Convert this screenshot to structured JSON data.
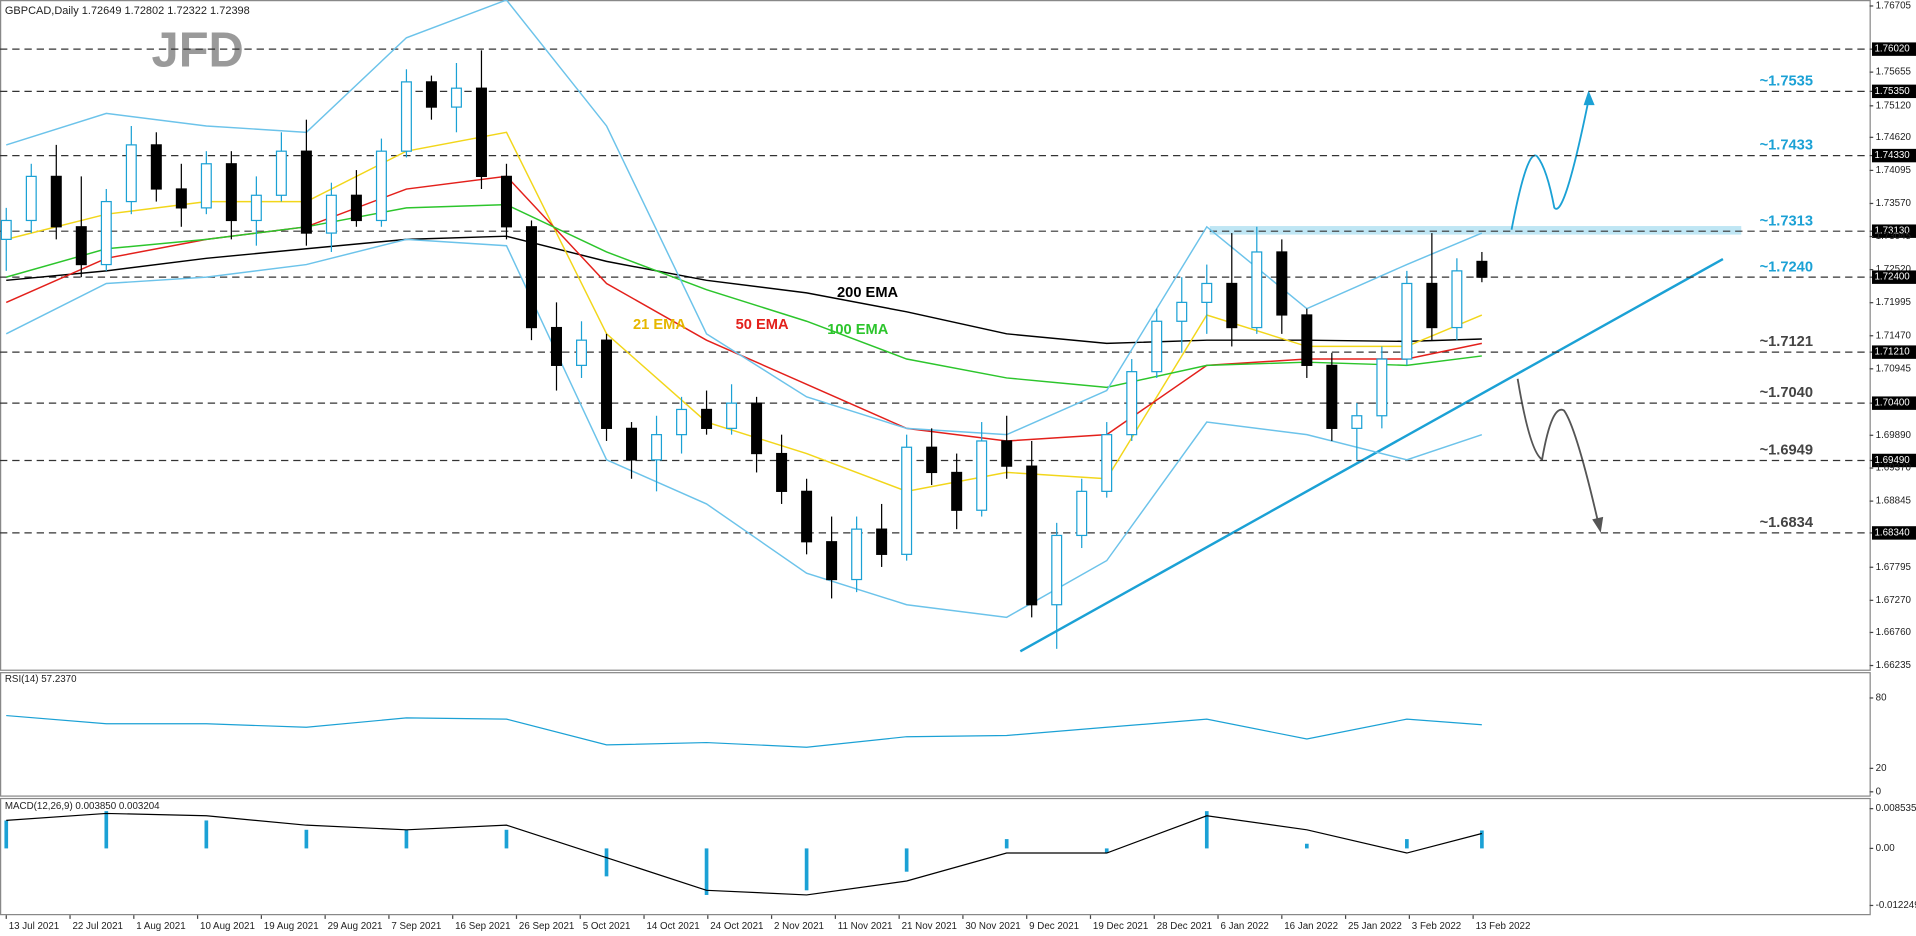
{
  "chart_data": [
    {
      "type": "candlestick",
      "title": "GBPCAD,Daily  1.72649 1.72802 1.72322 1.72398",
      "logo": "JFD",
      "up_color": "#1ba1d5",
      "down_color": "#000000",
      "open": [
        1.73,
        1.733,
        1.74,
        1.732,
        1.726,
        1.736,
        1.745,
        1.738,
        1.735,
        1.742,
        1.733,
        1.737,
        1.744,
        1.731,
        1.737,
        1.733,
        1.744,
        1.755,
        1.751,
        1.754,
        1.74,
        1.732,
        1.716,
        1.71,
        1.714,
        1.7,
        1.695,
        1.699,
        1.703,
        1.7,
        1.704,
        1.696,
        1.69,
        1.682,
        1.676,
        1.684,
        1.68,
        1.697,
        1.693,
        1.687,
        1.698,
        1.694,
        1.672,
        1.683,
        1.69,
        1.699,
        1.709,
        1.717,
        1.72,
        1.723,
        1.716,
        1.728,
        1.718,
        1.71,
        1.7,
        1.702,
        1.711,
        1.723,
        1.716,
        1.7265
      ],
      "high": [
        1.735,
        1.742,
        1.745,
        1.74,
        1.738,
        1.748,
        1.747,
        1.742,
        1.744,
        1.744,
        1.74,
        1.747,
        1.749,
        1.739,
        1.741,
        1.746,
        1.757,
        1.756,
        1.758,
        1.76,
        1.742,
        1.733,
        1.72,
        1.717,
        1.715,
        1.701,
        1.702,
        1.705,
        1.706,
        1.707,
        1.705,
        1.699,
        1.692,
        1.686,
        1.686,
        1.688,
        1.699,
        1.7,
        1.696,
        1.701,
        1.702,
        1.698,
        1.685,
        1.692,
        1.701,
        1.711,
        1.719,
        1.724,
        1.726,
        1.731,
        1.732,
        1.73,
        1.719,
        1.712,
        1.704,
        1.713,
        1.725,
        1.731,
        1.727,
        1.728
      ],
      "low": [
        1.725,
        1.731,
        1.73,
        1.724,
        1.725,
        1.734,
        1.736,
        1.732,
        1.734,
        1.73,
        1.729,
        1.736,
        1.729,
        1.728,
        1.732,
        1.732,
        1.743,
        1.749,
        1.747,
        1.738,
        1.73,
        1.714,
        1.706,
        1.708,
        1.698,
        1.692,
        1.69,
        1.696,
        1.699,
        1.699,
        1.693,
        1.688,
        1.68,
        1.673,
        1.674,
        1.678,
        1.679,
        1.691,
        1.684,
        1.686,
        1.692,
        1.67,
        1.665,
        1.681,
        1.689,
        1.698,
        1.708,
        1.712,
        1.715,
        1.713,
        1.715,
        1.715,
        1.708,
        1.698,
        1.695,
        1.7,
        1.71,
        1.714,
        1.714,
        1.7232
      ],
      "close": [
        1.733,
        1.74,
        1.732,
        1.726,
        1.736,
        1.745,
        1.738,
        1.735,
        1.742,
        1.733,
        1.737,
        1.744,
        1.731,
        1.737,
        1.733,
        1.744,
        1.755,
        1.751,
        1.754,
        1.74,
        1.732,
        1.716,
        1.71,
        1.714,
        1.7,
        1.695,
        1.699,
        1.703,
        1.7,
        1.704,
        1.696,
        1.69,
        1.682,
        1.676,
        1.684,
        1.68,
        1.697,
        1.693,
        1.687,
        1.698,
        1.694,
        1.672,
        1.683,
        1.69,
        1.699,
        1.709,
        1.717,
        1.72,
        1.723,
        1.716,
        1.728,
        1.718,
        1.71,
        1.7,
        1.702,
        1.711,
        1.723,
        1.716,
        1.725,
        1.724
      ],
      "series": [
        {
          "name": "200 EMA",
          "color": "#000000",
          "x": [
            0,
            4,
            8,
            12,
            16,
            20,
            24,
            28,
            32,
            36,
            40,
            44,
            48,
            52,
            56,
            59
          ],
          "values": [
            1.7235,
            1.725,
            1.727,
            1.7285,
            1.73,
            1.7305,
            1.7265,
            1.7235,
            1.7215,
            1.7185,
            1.715,
            1.7135,
            1.714,
            1.714,
            1.7138,
            1.7142
          ]
        },
        {
          "name": "21 EMA",
          "color": "#f2d61a",
          "x": [
            0,
            4,
            8,
            12,
            16,
            20,
            24,
            28,
            32,
            36,
            40,
            44,
            48,
            52,
            56,
            59
          ],
          "values": [
            1.73,
            1.734,
            1.736,
            1.736,
            1.744,
            1.747,
            1.715,
            1.701,
            1.696,
            1.69,
            1.693,
            1.692,
            1.718,
            1.713,
            1.713,
            1.718
          ]
        },
        {
          "name": "50 EMA",
          "color": "#e3201b",
          "x": [
            0,
            4,
            8,
            12,
            16,
            20,
            24,
            28,
            32,
            36,
            40,
            44,
            48,
            52,
            56,
            59
          ],
          "values": [
            1.72,
            1.727,
            1.73,
            1.732,
            1.738,
            1.74,
            1.723,
            1.714,
            1.707,
            1.7,
            1.698,
            1.699,
            1.71,
            1.711,
            1.711,
            1.7135
          ]
        },
        {
          "name": "100 EMA",
          "color": "#2cc52c",
          "x": [
            0,
            4,
            8,
            12,
            16,
            20,
            24,
            28,
            32,
            36,
            40,
            44,
            48,
            52,
            56,
            59
          ],
          "values": [
            1.724,
            1.7285,
            1.73,
            1.732,
            1.735,
            1.7355,
            1.728,
            1.722,
            1.717,
            1.711,
            1.708,
            1.7065,
            1.71,
            1.7105,
            1.71,
            1.7115
          ]
        },
        {
          "color": "#6cc3ea",
          "x": [
            0,
            4,
            8,
            12,
            16,
            20,
            24,
            28,
            32,
            36,
            40,
            44,
            48,
            52,
            56,
            59
          ],
          "values": [
            1.745,
            1.75,
            1.748,
            1.747,
            1.762,
            1.768,
            1.748,
            1.715,
            1.705,
            1.7,
            1.699,
            1.706,
            1.732,
            1.719,
            1.726,
            1.731
          ]
        },
        {
          "color": "#6cc3ea",
          "x": [
            0,
            4,
            8,
            12,
            16,
            20,
            24,
            28,
            32,
            36,
            40,
            44,
            48,
            52,
            56,
            59
          ],
          "values": [
            1.715,
            1.723,
            1.724,
            1.726,
            1.73,
            1.729,
            1.695,
            1.688,
            1.677,
            1.672,
            1.67,
            1.679,
            1.701,
            1.699,
            1.695,
            1.699
          ]
        }
      ],
      "xlim": [
        -0.25,
        74.5
      ],
      "xticks": [
        {
          "value": 0,
          "label": "13 Jul 2021"
        },
        {
          "value": 2.55,
          "label": "22 Jul 2021"
        },
        {
          "value": 5.1,
          "label": "1 Aug 2021"
        },
        {
          "value": 7.65,
          "label": "10 Aug 2021"
        },
        {
          "value": 10.2,
          "label": "19 Aug 2021"
        },
        {
          "value": 12.75,
          "label": "29 Aug 2021"
        },
        {
          "value": 15.3,
          "label": "7 Sep 2021"
        },
        {
          "value": 17.85,
          "label": "16 Sep 2021"
        },
        {
          "value": 20.4,
          "label": "26 Sep 2021"
        },
        {
          "value": 22.95,
          "label": "5 Oct 2021"
        },
        {
          "value": 25.5,
          "label": "14 Oct 2021"
        },
        {
          "value": 28.05,
          "label": "24 Oct 2021"
        },
        {
          "value": 30.6,
          "label": "2 Nov 2021"
        },
        {
          "value": 33.15,
          "label": "11 Nov 2021"
        },
        {
          "value": 35.7,
          "label": "21 Nov 2021"
        },
        {
          "value": 38.25,
          "label": "30 Nov 2021"
        },
        {
          "value": 40.8,
          "label": "9 Dec 2021"
        },
        {
          "value": 43.35,
          "label": "19 Dec 2021"
        },
        {
          "value": 45.9,
          "label": "28 Dec 2021"
        },
        {
          "value": 48.45,
          "label": "6 Jan 2022"
        },
        {
          "value": 51,
          "label": "16 Jan 2022"
        },
        {
          "value": 53.55,
          "label": "25 Jan 2022"
        },
        {
          "value": 56.1,
          "label": "3 Feb 2022"
        },
        {
          "value": 58.65,
          "label": "13 Feb 2022"
        }
      ],
      "ylim": [
        1.6617,
        1.768
      ],
      "yticks": [
        1.76705,
        {
          "value": 1.7602,
          "label": "1.76020",
          "highlight": true
        },
        1.75655,
        {
          "value": 1.7535,
          "label": "1.75350",
          "highlight": true
        },
        {
          "value": 1.7512,
          "label": "1.75120"
        },
        {
          "value": 1.7462,
          "label": "1.74620"
        },
        {
          "value": 1.7433,
          "label": "1.74330",
          "highlight": true
        },
        1.74095,
        {
          "value": 1.7357,
          "label": "1.73570"
        },
        {
          "value": 1.7313,
          "label": "1.73130",
          "highlight": true
        },
        1.73045,
        {
          "value": 1.7252,
          "label": "1.72520"
        },
        {
          "value": 1.724,
          "label": "1.72400",
          "highlight": true
        },
        1.71995,
        {
          "value": 1.7147,
          "label": "1.71470"
        },
        {
          "value": 1.7121,
          "label": "1.71210",
          "highlight": true
        },
        1.70945,
        {
          "value": 1.704,
          "label": "1.70400",
          "highlight": true
        },
        {
          "value": 1.6989,
          "label": "1.69890"
        },
        {
          "value": 1.6949,
          "label": "1.69490",
          "highlight": true
        },
        {
          "value": 1.6937,
          "label": "1.69370"
        },
        1.68845,
        {
          "value": 1.6834,
          "label": "1.68340",
          "highlight": true
        },
        1.67795,
        {
          "value": 1.6727,
          "label": "1.67270"
        },
        {
          "value": 1.6676,
          "label": "1.66760"
        },
        1.66235
      ],
      "annotations": [
        {
          "value": 1.7535,
          "label": "~1.7535",
          "color": "#1ba1d5"
        },
        {
          "value": 1.7433,
          "label": "~1.7433",
          "color": "#1ba1d5"
        },
        {
          "value": 1.7313,
          "label": "~1.7313",
          "color": "#1ba1d5"
        },
        {
          "value": 1.724,
          "label": "~1.7240",
          "color": "#1ba1d5"
        },
        {
          "value": 1.7121,
          "label": "~1.7121",
          "color": "#444444"
        },
        {
          "value": 1.704,
          "label": "~1.7040",
          "color": "#444444"
        },
        {
          "value": 1.6949,
          "label": "~1.6949",
          "color": "#444444"
        },
        {
          "value": 1.6834,
          "label": "~1.6834",
          "color": "#444444"
        }
      ]
    },
    {
      "type": "line",
      "title": "RSI(14) 57.2370",
      "series": [
        {
          "color": "#1ba1d5",
          "x": [
            0,
            4,
            8,
            12,
            16,
            20,
            24,
            28,
            32,
            36,
            40,
            44,
            48,
            52,
            56,
            59
          ],
          "values": [
            65,
            58,
            58,
            55,
            63,
            62,
            40,
            42,
            38,
            47,
            48,
            55,
            62,
            45,
            62,
            57.237
          ]
        }
      ],
      "ylim": [
        0,
        100
      ],
      "yticks": [
        80,
        20,
        0
      ]
    },
    {
      "type": "macd",
      "title": "MACD(12,26,9) 0.003850 0.003204",
      "histogram": {
        "color": "#1ba1d5",
        "x": [
          0,
          4,
          8,
          12,
          16,
          20,
          24,
          28,
          32,
          36,
          40,
          44,
          48,
          52,
          56,
          59
        ],
        "values": [
          0.006,
          0.008,
          0.006,
          0.004,
          0.004,
          0.004,
          -0.006,
          -0.01,
          -0.009,
          -0.005,
          0.002,
          -0.001,
          0.008,
          0.001,
          0.002,
          0.00385
        ]
      },
      "series": [
        {
          "color": "#000000",
          "x": [
            0,
            4,
            8,
            12,
            16,
            20,
            24,
            28,
            32,
            36,
            40,
            44,
            48,
            52,
            56,
            59
          ],
          "values": [
            0.006,
            0.0075,
            0.007,
            0.005,
            0.004,
            0.005,
            -0.002,
            -0.009,
            -0.01,
            -0.007,
            -0.001,
            -0.001,
            0.007,
            0.004,
            -0.001,
            0.003204
          ]
        }
      ],
      "ylim": [
        -0.01356,
        0.00979
      ],
      "yticks": [
        0.008535,
        {
          "value": 0,
          "label": "0.00"
        },
        -0.012249
      ]
    }
  ]
}
